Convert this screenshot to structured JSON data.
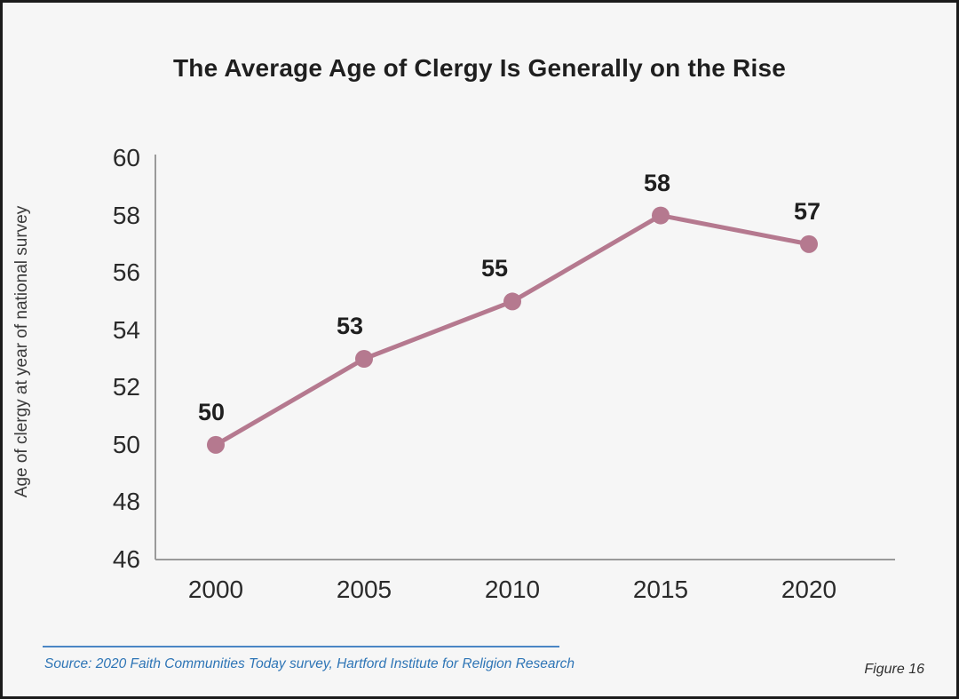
{
  "title": "The Average Age of Clergy Is Generally on the Rise",
  "figure_label": "Figure 16",
  "source": {
    "text": "Source: 2020 Faith Communities Today survey, Hartford Institute for Religion Research"
  },
  "colors": {
    "line": "#b5798f",
    "marker": "#b5798f",
    "axis": "#9a9a9a",
    "title_text": "#1f1f1f",
    "data_label_text": "#1f1f1f",
    "source_blue": "#2e75b6",
    "background": "#f6f6f6",
    "frame_border": "#1b1b1b"
  },
  "chart_data": {
    "type": "line",
    "x": [
      2000,
      2005,
      2010,
      2015,
      2020
    ],
    "values": [
      50,
      53,
      55,
      58,
      57
    ],
    "data_labels": [
      "50",
      "53",
      "55",
      "58",
      "57"
    ],
    "title": "The Average Age of Clergy Is Generally on the Rise",
    "xlabel": "",
    "ylabel": "Age of clergy at year of national survey",
    "ylim": [
      46,
      60
    ],
    "yticks": [
      60,
      58,
      56,
      54,
      52,
      50,
      48,
      46
    ],
    "xticks": [
      2000,
      2005,
      2010,
      2015,
      2020
    ],
    "grid": false,
    "legend": null,
    "marker": "circle",
    "x_range": [
      2000,
      2020
    ]
  }
}
